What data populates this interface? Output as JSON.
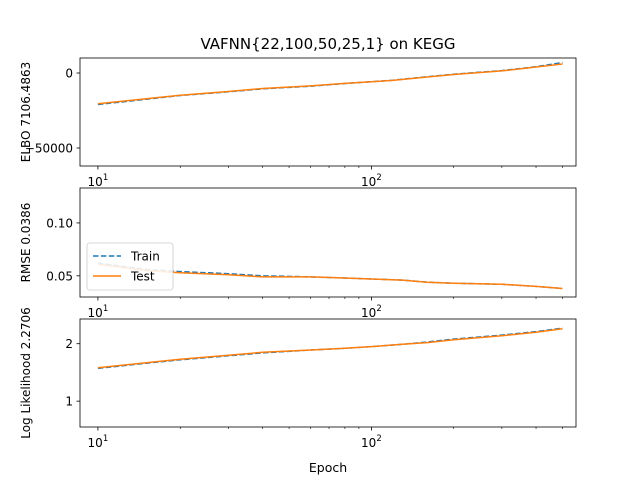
{
  "title": "VAFNN{22,100,50,25,1} on KEGG",
  "xlabel": "Epoch",
  "legend": {
    "train_label": "Train",
    "test_label": "Test"
  },
  "colors": {
    "train": "#1f77b4",
    "test": "#ff7f0e"
  },
  "chart_data": [
    {
      "type": "line",
      "ylabel": "ELBO 7106.4863",
      "xscale": "log",
      "xlim": [
        8.6,
        560
      ],
      "ylim": [
        -62000,
        10000
      ],
      "xticks": [
        {
          "v": 10,
          "t": "10",
          "e": "1"
        },
        {
          "v": 100,
          "t": "10",
          "e": "2"
        }
      ],
      "yticks": [
        {
          "v": 0,
          "t": "0"
        },
        {
          "v": -50000,
          "t": "−50000"
        }
      ],
      "grid": false,
      "series": [
        {
          "name": "Train",
          "style": "dashed",
          "x": [
            10,
            15,
            20,
            30,
            40,
            60,
            80,
            100,
            120,
            150,
            200,
            300,
            400,
            500
          ],
          "y": [
            -21000,
            -17500,
            -15000,
            -12500,
            -10500,
            -8800,
            -7000,
            -5800,
            -4800,
            -3000,
            -800,
            1600,
            4200,
            6900
          ]
        },
        {
          "name": "Test",
          "style": "solid",
          "x": [
            10,
            15,
            20,
            30,
            40,
            60,
            80,
            100,
            120,
            150,
            200,
            300,
            400,
            500
          ],
          "y": [
            -20500,
            -17200,
            -14800,
            -12300,
            -10300,
            -8600,
            -6900,
            -5900,
            -4900,
            -3200,
            -1000,
            1400,
            4000,
            6000
          ]
        }
      ]
    },
    {
      "type": "line",
      "ylabel": "RMSE 0.0386",
      "xscale": "log",
      "xlim": [
        8.6,
        560
      ],
      "ylim": [
        0.03,
        0.133
      ],
      "xticks": [
        {
          "v": 10,
          "t": "10",
          "e": "1"
        },
        {
          "v": 100,
          "t": "10",
          "e": "2"
        }
      ],
      "yticks": [
        {
          "v": 0.1,
          "t": "0.10"
        },
        {
          "v": 0.05,
          "t": "0.05"
        }
      ],
      "grid": false,
      "legend_loc": "lower left",
      "series": [
        {
          "name": "Train",
          "style": "dashed",
          "x": [
            10,
            15,
            20,
            30,
            40,
            60,
            80,
            100,
            130,
            160,
            200,
            300,
            400,
            500
          ],
          "y": [
            0.062,
            0.056,
            0.054,
            0.052,
            0.05,
            0.049,
            0.048,
            0.047,
            0.046,
            0.044,
            0.043,
            0.042,
            0.04,
            0.038
          ]
        },
        {
          "name": "Test",
          "style": "solid",
          "x": [
            10,
            15,
            20,
            30,
            40,
            60,
            80,
            100,
            130,
            160,
            200,
            300,
            400,
            500
          ],
          "y": [
            0.061,
            0.055,
            0.053,
            0.051,
            0.049,
            0.049,
            0.048,
            0.047,
            0.046,
            0.044,
            0.043,
            0.042,
            0.04,
            0.038
          ]
        }
      ]
    },
    {
      "type": "line",
      "ylabel": "Log Likelihood 2.2706",
      "xscale": "log",
      "xlim": [
        8.6,
        560
      ],
      "ylim": [
        0.55,
        2.43
      ],
      "xticks": [
        {
          "v": 10,
          "t": "10",
          "e": "1"
        },
        {
          "v": 100,
          "t": "10",
          "e": "2"
        }
      ],
      "yticks": [
        {
          "v": 2,
          "t": "2"
        },
        {
          "v": 1,
          "t": "1"
        }
      ],
      "grid": false,
      "series": [
        {
          "name": "Train",
          "style": "dashed",
          "x": [
            10,
            15,
            20,
            30,
            40,
            60,
            80,
            100,
            130,
            160,
            200,
            300,
            400,
            500
          ],
          "y": [
            1.57,
            1.66,
            1.72,
            1.79,
            1.84,
            1.89,
            1.92,
            1.95,
            1.99,
            2.03,
            2.08,
            2.15,
            2.21,
            2.27
          ]
        },
        {
          "name": "Test",
          "style": "solid",
          "x": [
            10,
            15,
            20,
            30,
            40,
            60,
            80,
            100,
            130,
            160,
            200,
            300,
            400,
            500
          ],
          "y": [
            1.58,
            1.67,
            1.73,
            1.8,
            1.85,
            1.89,
            1.92,
            1.95,
            1.99,
            2.02,
            2.07,
            2.14,
            2.2,
            2.26
          ]
        }
      ]
    }
  ]
}
